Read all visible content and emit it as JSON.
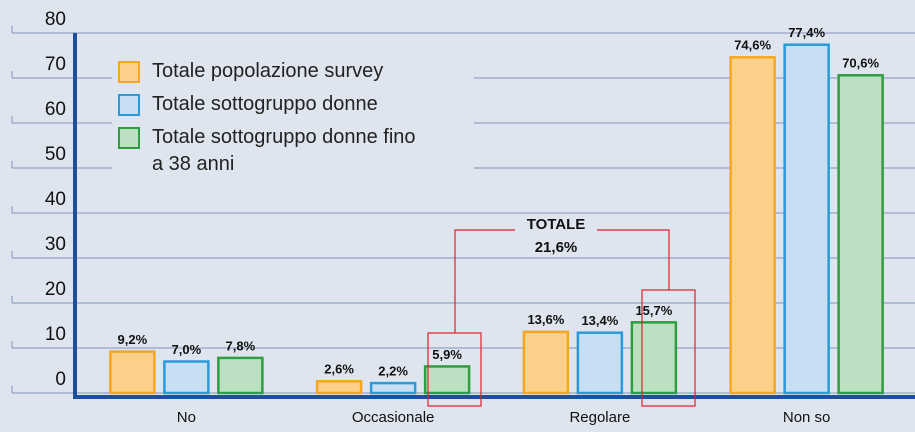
{
  "chart_data": {
    "type": "bar",
    "categories": [
      "No",
      "Occasionale",
      "Regolare",
      "Non so"
    ],
    "series": [
      {
        "name": "Totale popolazione survey",
        "color": "#f5a623",
        "fill": "#fdd08a",
        "values": [
          9.2,
          2.6,
          13.6,
          74.6
        ],
        "value_labels": [
          "9,2%",
          "2,6%",
          "13,6%",
          "74,6%"
        ]
      },
      {
        "name": "Totale sottogruppo donne",
        "color": "#2a9ad8",
        "fill": "#c8def2",
        "values": [
          7.0,
          2.2,
          13.4,
          77.4
        ],
        "value_labels": [
          "7,0%",
          "2,2%",
          "13,4%",
          "77,4%"
        ]
      },
      {
        "name": "Totale sottogruppo donne fino a 38 anni",
        "color": "#2f9e3f",
        "fill": "#bde0c3",
        "values": [
          7.8,
          5.9,
          15.7,
          70.6
        ],
        "value_labels": [
          "7,8%",
          "5,9%",
          "15,7%",
          "70,6%"
        ]
      }
    ],
    "annotations": [
      "TOTALE",
      "21,6%"
    ],
    "ylim": [
      0,
      80
    ],
    "yticks": [
      0,
      10,
      20,
      30,
      40,
      50,
      60,
      70,
      80
    ],
    "grid": true
  }
}
